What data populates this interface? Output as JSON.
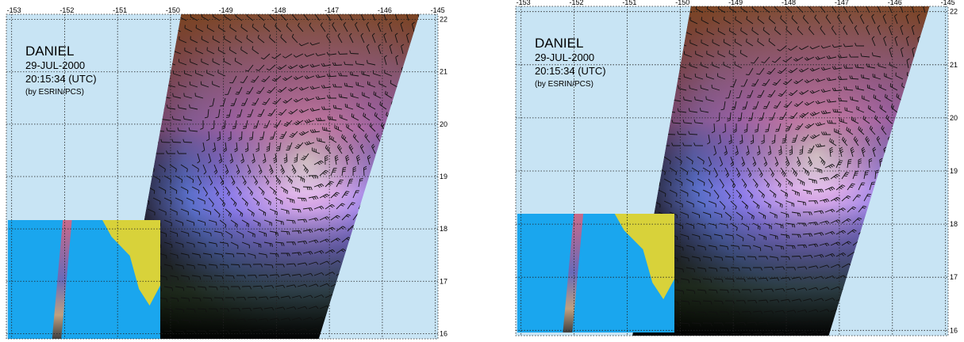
{
  "colors": {
    "sky": "#c8e4f4",
    "inset_ocean": "#1aa6ee",
    "inset_land": "#d8d23a",
    "grid": "#222222",
    "barb": "#111111"
  },
  "legend_icon": "none",
  "panels": [
    {
      "id": "left",
      "storm_name": "DANIEL",
      "date": "29-JUL-2000",
      "time": "20:15:34 (UTC)",
      "credit": "(by ESRIN/PCS)",
      "lon_labels": [
        "-153",
        "-152",
        "-151",
        "-150",
        "-149",
        "-148",
        "-147",
        "-146",
        "-145"
      ],
      "lat_labels": [
        "22",
        "21",
        "20",
        "19",
        "18",
        "17",
        "16"
      ],
      "lon_range": [
        -153.1,
        -144.95
      ],
      "lat_range": [
        15.9,
        22.1
      ],
      "swath": {
        "top_left_lon": -149.8,
        "top_right_lon": -145.3,
        "bottom_left_lon": -150.9,
        "bottom_right_lon": -147.2
      },
      "eye": {
        "lon": -147.3,
        "lat": 19.3
      },
      "inset": {
        "present": true
      }
    },
    {
      "id": "right",
      "storm_name": "DANIEL",
      "date": "29-JUL-2000",
      "time": "20:15:34 (UTC)",
      "credit": "(by ESRIN/PCS)",
      "lon_labels": [
        "-153",
        "-152",
        "-151",
        "-150",
        "-149",
        "-148",
        "-147",
        "-146",
        "-145"
      ],
      "lat_labels": [
        "22",
        "21",
        "20",
        "19",
        "18",
        "17",
        "16"
      ],
      "lon_range": [
        -153.1,
        -144.95
      ],
      "lat_range": [
        15.9,
        22.1
      ],
      "swath": {
        "top_left_lon": -149.8,
        "top_right_lon": -145.3,
        "bottom_left_lon": -150.9,
        "bottom_right_lon": -147.2
      },
      "eye": {
        "lon": -147.3,
        "lat": 19.3
      },
      "inset": {
        "present": true
      }
    }
  ]
}
